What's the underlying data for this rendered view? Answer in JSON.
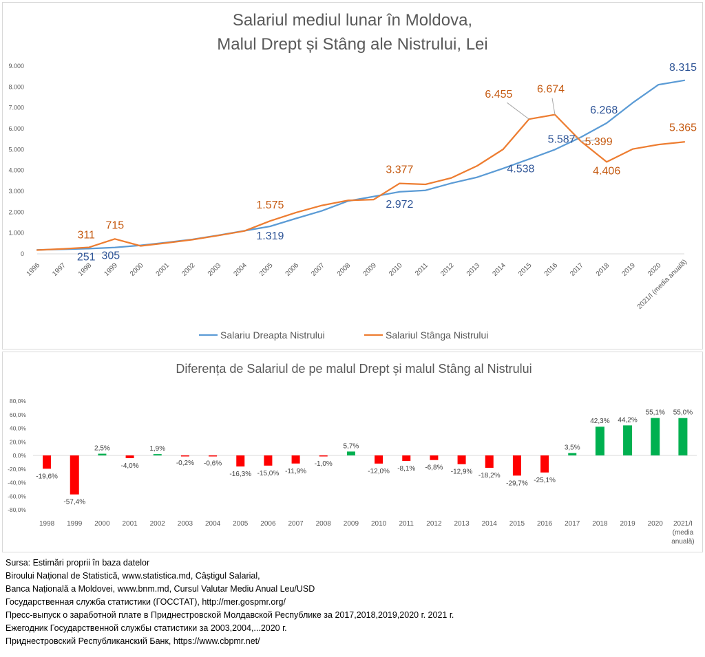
{
  "chart_data": [
    {
      "type": "line",
      "title": "Salariul mediul lunar în Moldova,",
      "subtitle": "Malul Drept și Stâng ale Nistrului, Lei",
      "xlabel": "",
      "ylabel": "",
      "ylim": [
        0,
        9000
      ],
      "yticks": [
        "0",
        "1.000",
        "2.000",
        "3.000",
        "4.000",
        "5.000",
        "6.000",
        "7.000",
        "8.000",
        "9.000"
      ],
      "categories": [
        "1996",
        "1997",
        "1998",
        "1999",
        "2000",
        "2001",
        "2002",
        "2003",
        "2004",
        "2005",
        "2006",
        "2007",
        "2008",
        "2009",
        "2010",
        "2011",
        "2012",
        "2013",
        "2014",
        "2015",
        "2016",
        "2017",
        "2018",
        "2019",
        "2020",
        "2021/I (media anuală)"
      ],
      "grid": false,
      "legend": "bottom",
      "series": [
        {
          "name": "Salariu Dreapta Nistrului",
          "color": "#5b9bd5",
          "values": [
            188,
            219,
            251,
            305,
            408,
            543,
            691,
            890,
            1103,
            1319,
            1697,
            2065,
            2530,
            2748,
            2972,
            3042,
            3386,
            3674,
            4093,
            4538,
            4998,
            5587,
            6268,
            7233,
            8108,
            8315
          ],
          "labels": [
            {
              "i": 2,
              "text": "251"
            },
            {
              "i": 3,
              "text": "305"
            },
            {
              "i": 9,
              "text": "1.319"
            },
            {
              "i": 14,
              "text": "2.972"
            },
            {
              "i": 19,
              "text": "4.538"
            },
            {
              "i": 21,
              "text": "5.587"
            },
            {
              "i": 22,
              "text": "6.268"
            },
            {
              "i": 25,
              "text": "8.315"
            }
          ]
        },
        {
          "name": "Salariul Stânga Nistrului",
          "color": "#ed7d31",
          "values": [
            180,
            240,
            311,
            715,
            380,
            525,
            680,
            880,
            1095,
            1575,
            1980,
            2320,
            2560,
            2600,
            3377,
            3330,
            3640,
            4220,
            5010,
            6455,
            6674,
            5399,
            4406,
            5020,
            5240,
            5365
          ],
          "labels": [
            {
              "i": 2,
              "text": "311"
            },
            {
              "i": 3,
              "text": "715"
            },
            {
              "i": 9,
              "text": "1.575"
            },
            {
              "i": 14,
              "text": "3.377"
            },
            {
              "i": 19,
              "text": "6.455"
            },
            {
              "i": 20,
              "text": "6.674"
            },
            {
              "i": 21,
              "text": "5.399"
            },
            {
              "i": 22,
              "text": "4.406"
            },
            {
              "i": 25,
              "text": "5.365"
            }
          ]
        }
      ]
    },
    {
      "type": "bar",
      "title": "Diferența de Salariul de pe malul Drept și malul Stâng al Nistrului",
      "xlabel": "",
      "ylabel": "",
      "ylim": [
        -80,
        80
      ],
      "yticks": [
        "-80,0%",
        "-60,0%",
        "-40,0%",
        "-20,0%",
        "0,0%",
        "20,0%",
        "40,0%",
        "60,0%",
        "80,0%"
      ],
      "categories": [
        "1998",
        "1999",
        "2000",
        "2001",
        "2002",
        "2003",
        "2004",
        "2005",
        "2006",
        "2007",
        "2008",
        "2009",
        "2010",
        "2011",
        "2012",
        "2013",
        "2014",
        "2015",
        "2016",
        "2017",
        "2018",
        "2019",
        "2020",
        "2021/I (media anuală)"
      ],
      "values": [
        -19.6,
        -57.4,
        2.5,
        -4.0,
        1.9,
        -0.2,
        -0.6,
        -16.3,
        -15.0,
        -11.9,
        -1.0,
        5.7,
        -12.0,
        -8.1,
        -6.8,
        -12.9,
        -18.2,
        -29.7,
        -25.1,
        3.5,
        42.3,
        44.2,
        55.1,
        55.0
      ],
      "value_labels": [
        "-19,6%",
        "-57,4%",
        "2,5%",
        "-4,0%",
        "1,9%",
        "-0,2%",
        "-0,6%",
        "-16,3%",
        "-15,0%",
        "-11,9%",
        "-1,0%",
        "5,7%",
        "-12,0%",
        "-8,1%",
        "-6,8%",
        "-12,9%",
        "-18,2%",
        "-29,7%",
        "-25,1%",
        "3,5%",
        "42,3%",
        "44,2%",
        "55,1%",
        "55,0%"
      ],
      "colors": {
        "negative": "#ff0000",
        "positive": "#00b050"
      },
      "grid": false
    }
  ],
  "sources": [
    "Sursa: Estimări proprii în baza datelor",
    "Biroului Național de Statistică, www.statistica.md, Câștigul Salarial,",
    "Banca Națională a Moldovei, www.bnm.md, Cursul Valutar Mediu Anual Leu/USD",
    "Государственная служба статистики (ГОССТАТ), http://mer.gospmr.org/",
    "Пресс-выпуск о заработной плате в Приднестровской Молдавской Республике за 2017,2018,2019,2020 г. 2021 г.",
    "Ежегодник Государственной службы статистики за 2003,2004,...2020 г.",
    "Приднестровский Республиканский Банк, https://www.cbpmr.net/"
  ]
}
